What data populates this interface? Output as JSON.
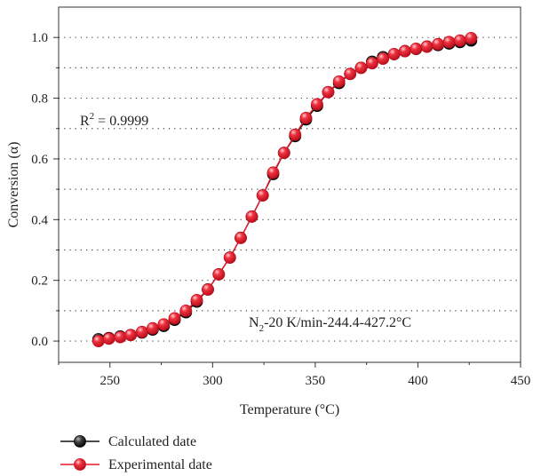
{
  "chart_data": {
    "type": "scatter",
    "xlabel": "Temperature (°C)",
    "ylabel": "Conversion (α)",
    "xlim": [
      225,
      450
    ],
    "ylim": [
      -0.07,
      1.1
    ],
    "xticks": [
      250,
      300,
      350,
      400,
      450
    ],
    "yticks": [
      0.0,
      0.2,
      0.4,
      0.6,
      0.8,
      1.0
    ],
    "xtick_labels": [
      "250",
      "300",
      "350",
      "400",
      "450"
    ],
    "ytick_labels": [
      "0.0",
      "0.2",
      "0.4",
      "0.6",
      "0.8",
      "1.0"
    ],
    "grid": "horizontal dotted",
    "legend_position": "bottom-left, below plot",
    "annotations": {
      "r2": {
        "prefix": "R",
        "sup": "2",
        "rest": " = 0.9999"
      },
      "condition": {
        "pre": "N",
        "sub": "2",
        "rest": "-20 K/min-244.4-427.2°C"
      }
    },
    "series": [
      {
        "name": "Calculated date",
        "color": "#111111",
        "style": "line-with-markers",
        "x": [
          244.4,
          249.5,
          255.0,
          260.1,
          265.6,
          270.8,
          276.2,
          281.5,
          287.0,
          292.3,
          297.7,
          303.0,
          308.4,
          313.7,
          319.1,
          324.4,
          329.5,
          334.8,
          340.2,
          345.5,
          350.9,
          356.3,
          361.6,
          367.0,
          372.3,
          377.7,
          383.0,
          388.4,
          393.7,
          399.1,
          404.4,
          409.8,
          415.2,
          420.5,
          425.9
        ],
        "y": [
          0.006,
          0.01,
          0.015,
          0.02,
          0.028,
          0.038,
          0.05,
          0.07,
          0.095,
          0.13,
          0.17,
          0.22,
          0.275,
          0.34,
          0.41,
          0.48,
          0.55,
          0.62,
          0.675,
          0.73,
          0.775,
          0.82,
          0.85,
          0.88,
          0.9,
          0.92,
          0.935,
          0.945,
          0.955,
          0.962,
          0.97,
          0.975,
          0.98,
          0.985,
          0.99
        ]
      },
      {
        "name": "Experimental date",
        "color": "#e8192c",
        "style": "line-with-markers",
        "x": [
          244.4,
          249.5,
          255.0,
          260.1,
          265.6,
          270.8,
          276.2,
          281.5,
          287.0,
          292.3,
          297.7,
          303.0,
          308.4,
          313.7,
          319.1,
          324.4,
          329.5,
          334.8,
          340.2,
          345.5,
          350.9,
          356.3,
          361.6,
          367.0,
          372.3,
          377.7,
          383.0,
          388.4,
          393.7,
          399.1,
          404.4,
          409.8,
          415.2,
          420.5,
          425.9
        ],
        "y": [
          0.0,
          0.008,
          0.013,
          0.02,
          0.03,
          0.042,
          0.055,
          0.075,
          0.1,
          0.135,
          0.17,
          0.22,
          0.275,
          0.34,
          0.41,
          0.48,
          0.555,
          0.62,
          0.68,
          0.735,
          0.78,
          0.82,
          0.855,
          0.88,
          0.9,
          0.915,
          0.93,
          0.945,
          0.955,
          0.963,
          0.97,
          0.978,
          0.985,
          0.99,
          0.998
        ]
      }
    ]
  }
}
